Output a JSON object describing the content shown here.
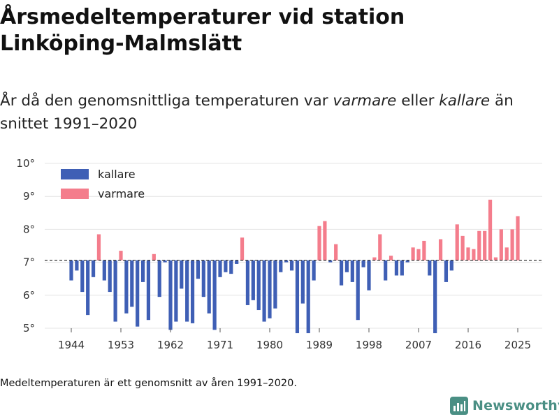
{
  "header": {
    "title_line1": "Årsmedeltemperaturer vid station",
    "title_line2": "Linköping-Malmslätt",
    "subtitle_part1": "År då den genomsnittliga temperaturen var ",
    "subtitle_em1": "varmare",
    "subtitle_part2": " eller ",
    "subtitle_em2": "kallare",
    "subtitle_part3": " än snittet 1991–2020"
  },
  "footer": {
    "note": "Medeltemperaturen är ett genomsnitt av åren 1991–2020.",
    "brand": "Newsworthy"
  },
  "colors": {
    "cold": "#3f5fb5",
    "warm": "#f47d8c",
    "baseline": "#333333",
    "grid": "#e4e4e4",
    "brand": "#4a8f84"
  },
  "chart_data": {
    "type": "bar",
    "title": "Årsmedeltemperaturer vid station Linköping-Malmslätt",
    "baseline": 7.06,
    "ylim": [
      5,
      10
    ],
    "y_ticks": [
      "5°",
      "6°",
      "7°",
      "8°",
      "9°",
      "10°"
    ],
    "x_ticks": [
      "1944",
      "1953",
      "1962",
      "1971",
      "1980",
      "1989",
      "1998",
      "2007",
      "2016",
      "2025"
    ],
    "legend": {
      "cold": "kallare",
      "warm": "varmare"
    },
    "years": [
      1944,
      1945,
      1946,
      1947,
      1948,
      1949,
      1950,
      1951,
      1952,
      1953,
      1954,
      1955,
      1956,
      1957,
      1958,
      1959,
      1960,
      1961,
      1962,
      1963,
      1964,
      1965,
      1966,
      1967,
      1968,
      1969,
      1970,
      1971,
      1972,
      1973,
      1974,
      1975,
      1976,
      1977,
      1978,
      1979,
      1980,
      1981,
      1982,
      1983,
      1984,
      1985,
      1986,
      1987,
      1988,
      1989,
      1990,
      1991,
      1992,
      1993,
      1994,
      1995,
      1996,
      1997,
      1998,
      1999,
      2000,
      2001,
      2002,
      2003,
      2004,
      2005,
      2006,
      2007,
      2008,
      2009,
      2010,
      2011,
      2012,
      2013,
      2014,
      2015,
      2016,
      2017,
      2018,
      2019,
      2020,
      2021,
      2022,
      2023,
      2024,
      2025
    ],
    "values": [
      6.45,
      6.75,
      6.1,
      5.4,
      6.55,
      7.85,
      6.45,
      6.1,
      5.2,
      7.35,
      5.45,
      5.65,
      5.05,
      6.4,
      5.25,
      7.25,
      5.95,
      7.0,
      4.95,
      5.2,
      6.2,
      5.2,
      5.15,
      6.5,
      5.95,
      5.45,
      4.95,
      6.55,
      6.7,
      6.65,
      6.95,
      7.75,
      5.7,
      5.85,
      5.55,
      5.2,
      5.3,
      5.6,
      6.7,
      7.0,
      6.75,
      4.85,
      5.75,
      4.85,
      6.45,
      8.1,
      8.25,
      7.0,
      7.55,
      6.3,
      6.7,
      6.4,
      5.25,
      6.85,
      6.15,
      7.15,
      7.85,
      6.45,
      7.2,
      6.6,
      6.6,
      7.0,
      7.45,
      7.4,
      7.65,
      6.6,
      4.85,
      7.7,
      6.4,
      6.75,
      8.15,
      7.8,
      7.45,
      7.4,
      7.95,
      7.95,
      8.9,
      7.15,
      8.0,
      7.45,
      8.0,
      8.4
    ]
  }
}
